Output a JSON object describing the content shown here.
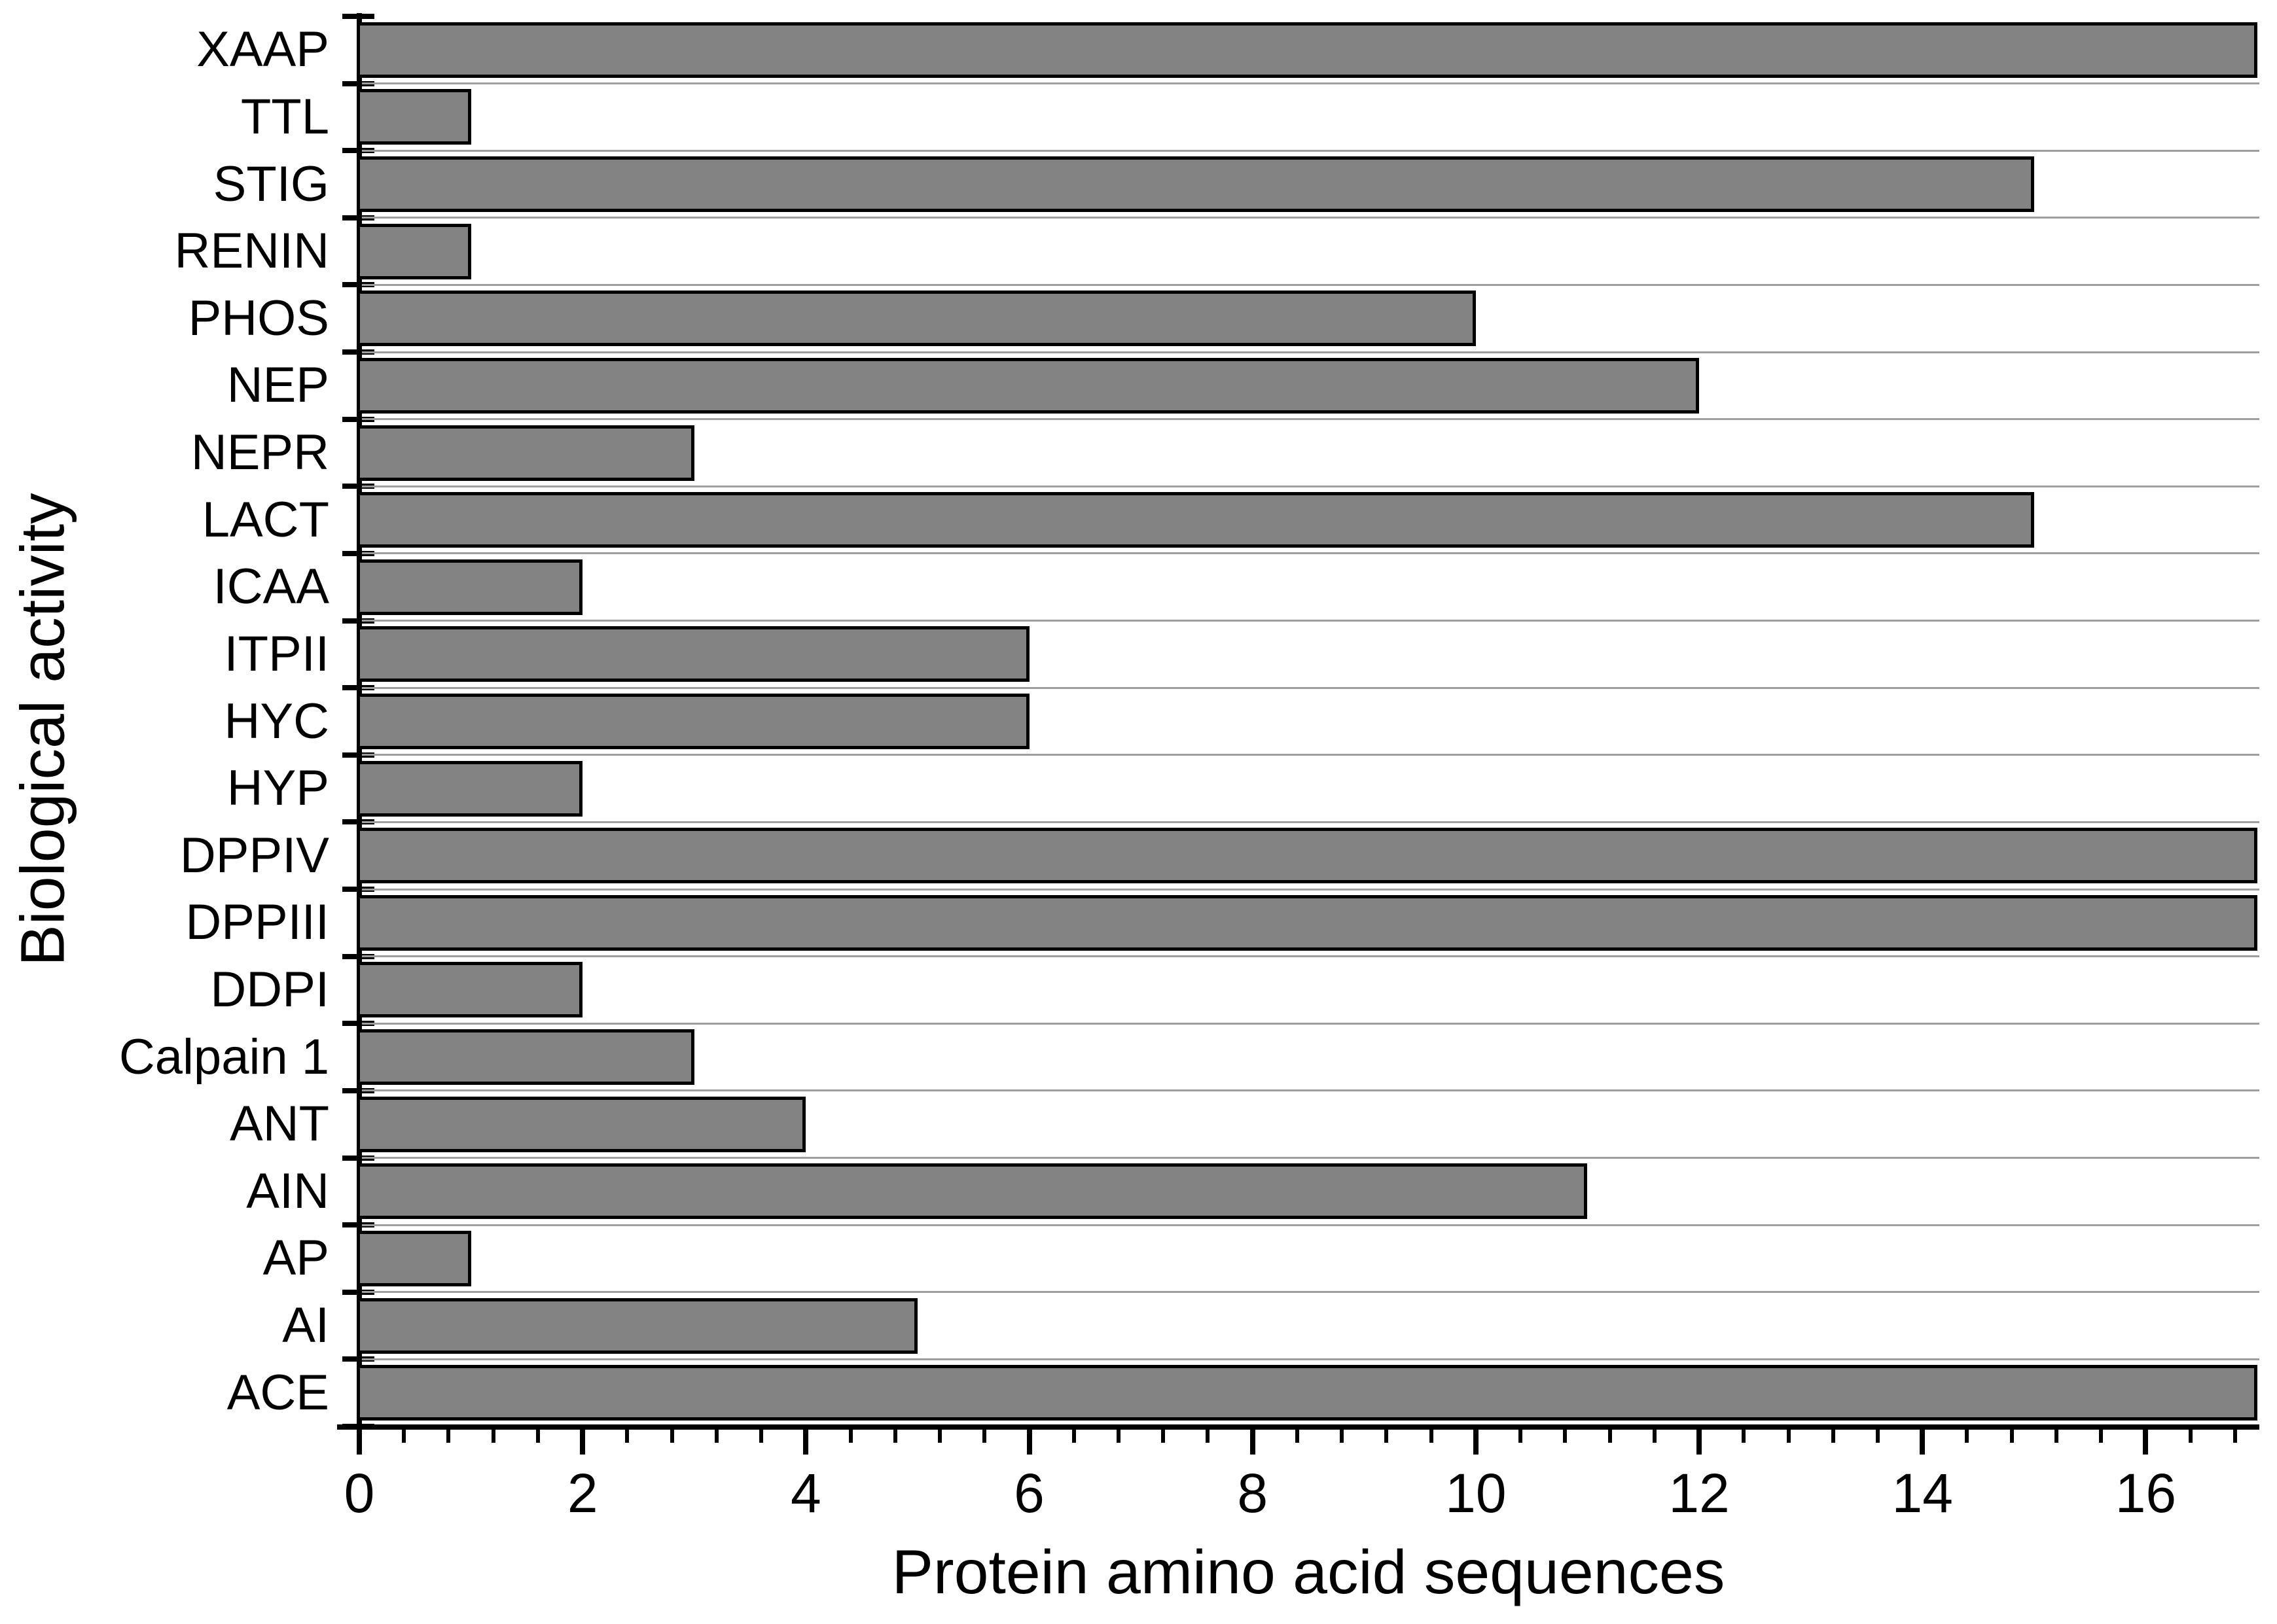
{
  "chart_data": {
    "type": "bar",
    "orientation": "horizontal",
    "title": "",
    "xlabel": "Protein amino acid sequences",
    "ylabel": "Biological activity",
    "categories_order": "top-to-bottom",
    "categories": [
      "XAAP",
      "TTL",
      "STIG",
      "RENIN",
      "PHOS",
      "NEP",
      "NEPR",
      "LACT",
      "ICAA",
      "ITPII",
      "HYC",
      "HYP",
      "DPPIV",
      "DPPIII",
      "DDPI",
      "Calpain 1",
      "ANT",
      "AIN",
      "AP",
      "AI",
      "ACE"
    ],
    "values": [
      17,
      1,
      15,
      1,
      10,
      12,
      3,
      15,
      2,
      6,
      6,
      2,
      17,
      17,
      2,
      3,
      4,
      11,
      1,
      5,
      17
    ],
    "xlim": [
      0,
      17
    ],
    "x_major_ticks": [
      0,
      2,
      4,
      6,
      8,
      10,
      12,
      14,
      16
    ],
    "x_minor_tick_interval": 0.4,
    "grid": "horizontal category-separator lines",
    "legend": "none",
    "colors": {
      "bar_fill": "#838383",
      "bar_border": "#000000",
      "gridline": "#9e9e9e",
      "axis": "#000000",
      "background": "#ffffff"
    }
  }
}
